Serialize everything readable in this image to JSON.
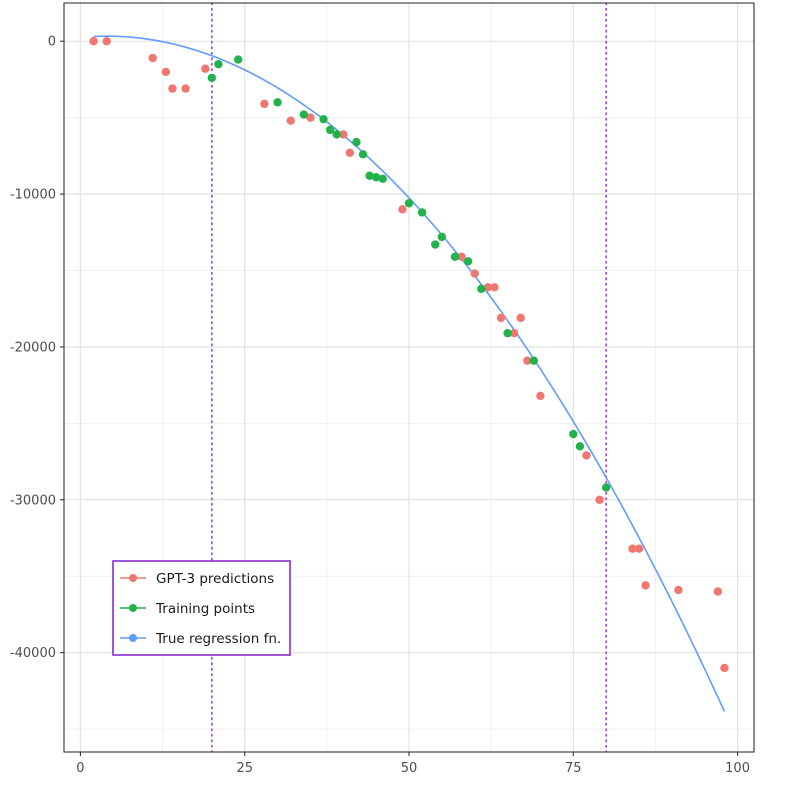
{
  "chart_data": {
    "type": "scatter",
    "title": "",
    "xlabel": "",
    "ylabel": "",
    "xlim": [
      -2.5,
      102.5
    ],
    "ylim": [
      -46500,
      2500
    ],
    "x_ticks": [
      0,
      25,
      50,
      75,
      100
    ],
    "y_ticks": [
      0,
      -10000,
      -20000,
      -30000,
      -40000
    ],
    "x_tick_labels": [
      "0",
      "25",
      "50",
      "75",
      "100"
    ],
    "y_tick_labels": [
      "0",
      "-10000",
      "-20000",
      "-30000",
      "-40000"
    ],
    "grid": true,
    "vlines": [
      20,
      80
    ],
    "vline_color": "#9d3fd3",
    "legend": {
      "position": "bottom-left",
      "border_color": "#8a2bd0",
      "entries": [
        "GPT-3 predictions",
        "Training points",
        "True regression fn."
      ]
    },
    "series": [
      {
        "name": "GPT-3 predictions",
        "kind": "points",
        "color": "#f07670",
        "points": [
          [
            2,
            0
          ],
          [
            4,
            0
          ],
          [
            11,
            -1100
          ],
          [
            13,
            -2000
          ],
          [
            14,
            -3100
          ],
          [
            16,
            -3100
          ],
          [
            19,
            -1800
          ],
          [
            28,
            -4100
          ],
          [
            32,
            -5200
          ],
          [
            35,
            -5000
          ],
          [
            40,
            -6100
          ],
          [
            41,
            -7300
          ],
          [
            49,
            -11000
          ],
          [
            58,
            -14100
          ],
          [
            60,
            -15200
          ],
          [
            62,
            -16100
          ],
          [
            63,
            -16100
          ],
          [
            64,
            -18100
          ],
          [
            66,
            -19100
          ],
          [
            67,
            -18100
          ],
          [
            68,
            -20900
          ],
          [
            70,
            -23200
          ],
          [
            77,
            -27100
          ],
          [
            79,
            -30000
          ],
          [
            84,
            -33200
          ],
          [
            85,
            -33200
          ],
          [
            86,
            -35600
          ],
          [
            91,
            -35900
          ],
          [
            97,
            -36000
          ],
          [
            98,
            -41000
          ]
        ]
      },
      {
        "name": "Training points",
        "kind": "points",
        "color": "#22b24c",
        "points": [
          [
            20,
            -2400
          ],
          [
            21,
            -1500
          ],
          [
            24,
            -1200
          ],
          [
            30,
            -4000
          ],
          [
            34,
            -4800
          ],
          [
            37,
            -5100
          ],
          [
            38,
            -5800
          ],
          [
            39,
            -6100
          ],
          [
            42,
            -6600
          ],
          [
            43,
            -7400
          ],
          [
            44,
            -8800
          ],
          [
            45,
            -8900
          ],
          [
            46,
            -9000
          ],
          [
            50,
            -10600
          ],
          [
            52,
            -11200
          ],
          [
            54,
            -13300
          ],
          [
            55,
            -12800
          ],
          [
            57,
            -14100
          ],
          [
            59,
            -14400
          ],
          [
            61,
            -16200
          ],
          [
            65,
            -19100
          ],
          [
            69,
            -20900
          ],
          [
            75,
            -25700
          ],
          [
            76,
            -26500
          ],
          [
            80,
            -29200
          ]
        ]
      },
      {
        "name": "True regression fn.",
        "kind": "line",
        "color": "#619cff",
        "function": "y = 250 + 40*x - 5*x^2",
        "x_range": [
          2,
          98
        ]
      }
    ]
  }
}
